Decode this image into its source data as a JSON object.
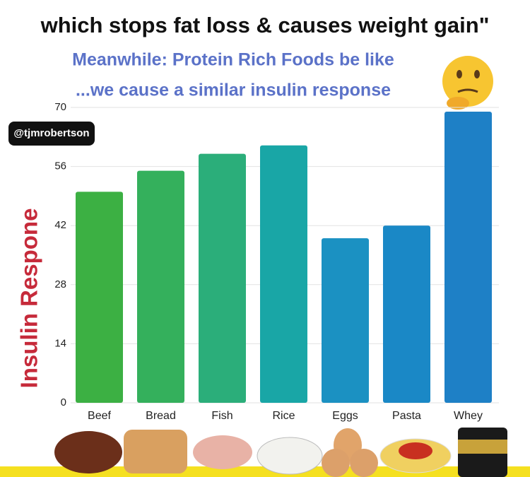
{
  "chart_data": {
    "type": "bar",
    "title": "which stops fat loss & causes weight gain\"",
    "subtitle": [
      "Meanwhile: Protein Rich Foods be like",
      "...we cause a similar insulin response"
    ],
    "handle": "@tjmrobertson",
    "y_label": "Insulin Respone",
    "categories": [
      "Beef",
      "Bread",
      "Fish",
      "Rice",
      "Eggs",
      "Pasta",
      "Whey"
    ],
    "values": [
      50,
      55,
      59,
      61,
      39,
      42,
      69
    ],
    "colors": [
      "#3cb043",
      "#34b05c",
      "#2bae7a",
      "#19a6a6",
      "#1b91c2",
      "#1a88c6",
      "#1e80c6"
    ],
    "ylim": [
      0,
      70
    ],
    "yticks": [
      0,
      14,
      28,
      42,
      56,
      70
    ],
    "grid": true
  }
}
